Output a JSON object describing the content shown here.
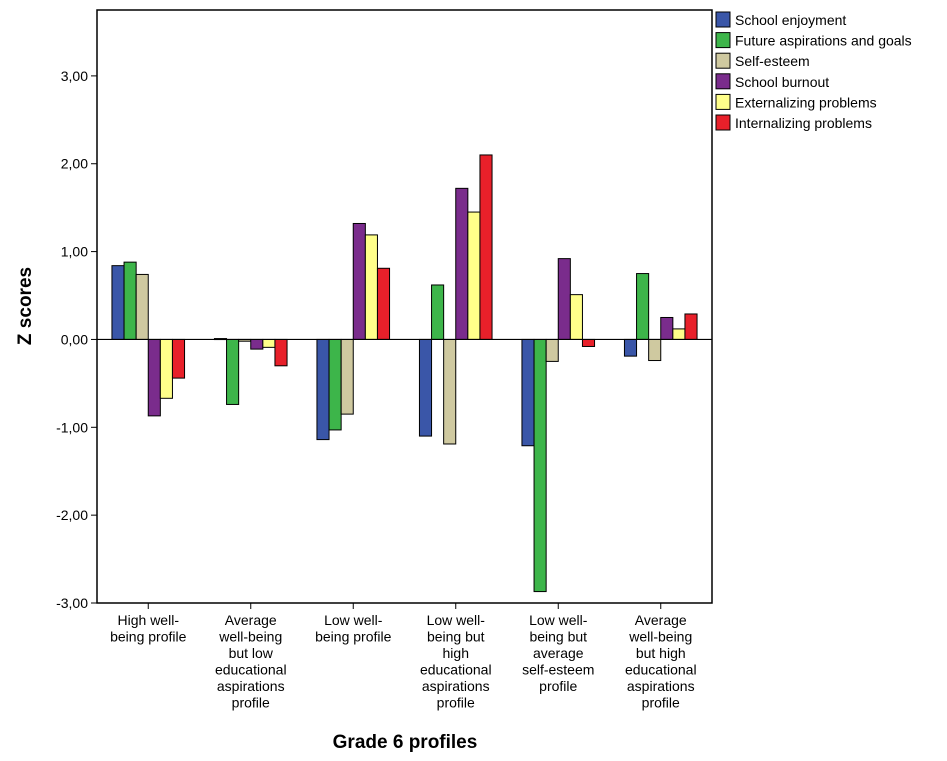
{
  "chart_data": {
    "type": "bar",
    "xlabel": "Grade 6 profiles",
    "ylabel": "Z scores",
    "ylim": [
      -3,
      3.75
    ],
    "yticks": [
      -3,
      -2,
      -1,
      0,
      1,
      2,
      3
    ],
    "ytick_labels": [
      "-3,00",
      "-2,00",
      "-1,00",
      "0,00",
      "1,00",
      "2,00",
      "3,00"
    ],
    "grid": false,
    "legend_position": "top-right, outside plot",
    "categories": [
      [
        "High well-",
        "being profile"
      ],
      [
        "Average",
        "well-being",
        "but low",
        "educational",
        "aspirations",
        "profile"
      ],
      [
        "Low well-",
        "being profile"
      ],
      [
        "Low well-",
        "being but",
        "high",
        "educational",
        "aspirations",
        "profile"
      ],
      [
        "Low well-",
        "being but",
        "average",
        "self-esteem",
        "profile"
      ],
      [
        "Average",
        "well-being",
        "but high",
        "educational",
        "aspirations",
        "profile"
      ]
    ],
    "series": [
      {
        "name": "School enjoyment",
        "color": "#3a56a8",
        "values": [
          0.84,
          0.01,
          -1.14,
          -1.1,
          -1.21,
          -0.19
        ]
      },
      {
        "name": "Future aspirations and goals",
        "color": "#3db54a",
        "values": [
          0.88,
          -0.74,
          -1.03,
          0.62,
          -2.87,
          0.75
        ]
      },
      {
        "name": "Self-esteem",
        "color": "#cfc9a0",
        "values": [
          0.74,
          -0.02,
          -0.85,
          -1.19,
          -0.25,
          -0.24
        ]
      },
      {
        "name": "School burnout",
        "color": "#7a2c8c",
        "values": [
          -0.87,
          -0.11,
          1.32,
          1.72,
          0.92,
          0.25
        ]
      },
      {
        "name": "Externalizing problems",
        "color": "#ffff8a",
        "values": [
          -0.67,
          -0.09,
          1.19,
          1.45,
          0.51,
          0.12
        ]
      },
      {
        "name": "Internalizing problems",
        "color": "#e8202a",
        "values": [
          -0.44,
          -0.3,
          0.81,
          2.1,
          -0.08,
          0.29
        ]
      }
    ]
  }
}
